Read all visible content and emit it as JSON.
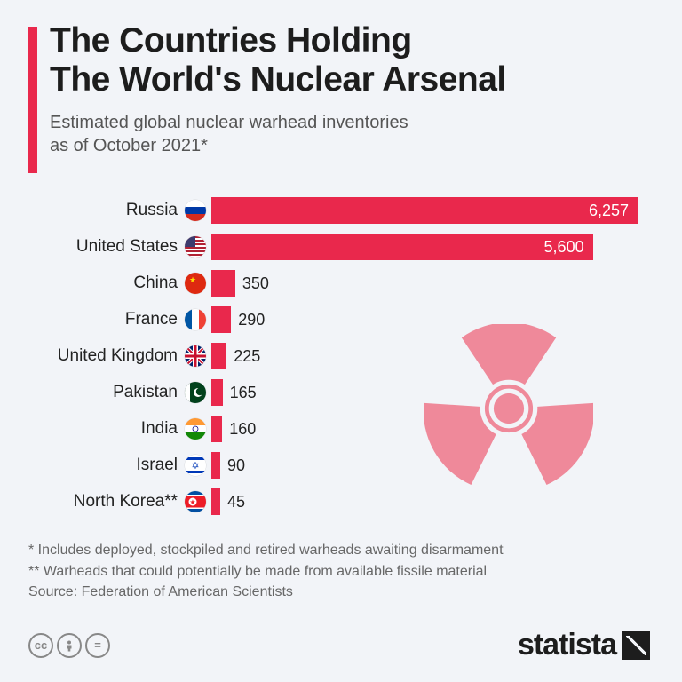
{
  "accent_color": "#e9284c",
  "bg_color": "#f2f4f8",
  "title_line1": "The Countries Holding",
  "title_line2": "The World's Nuclear Arsenal",
  "subtitle_line1": "Estimated global nuclear warhead inventories",
  "subtitle_line2": "as of October 2021*",
  "chart": {
    "type": "bar",
    "max_value": 6257,
    "bar_color": "#e9284c",
    "label_fontsize": 19,
    "value_fontsize": 18,
    "rows": [
      {
        "country": "Russia",
        "value": 6257,
        "value_fmt": "6,257",
        "big": true,
        "flag_key": "ru"
      },
      {
        "country": "United States",
        "value": 5600,
        "value_fmt": "5,600",
        "big": true,
        "flag_key": "us"
      },
      {
        "country": "China",
        "value": 350,
        "value_fmt": "350",
        "big": false,
        "flag_key": "cn"
      },
      {
        "country": "France",
        "value": 290,
        "value_fmt": "290",
        "big": false,
        "flag_key": "fr"
      },
      {
        "country": "United Kingdom",
        "value": 225,
        "value_fmt": "225",
        "big": false,
        "flag_key": "uk"
      },
      {
        "country": "Pakistan",
        "value": 165,
        "value_fmt": "165",
        "big": false,
        "flag_key": "pk"
      },
      {
        "country": "India",
        "value": 160,
        "value_fmt": "160",
        "big": false,
        "flag_key": "in"
      },
      {
        "country": "Israel",
        "value": 90,
        "value_fmt": "90",
        "big": false,
        "flag_key": "il"
      },
      {
        "country": "North Korea**",
        "value": 45,
        "value_fmt": "45",
        "big": false,
        "flag_key": "kp"
      }
    ]
  },
  "footnote1": "*   Includes deployed, stockpiled and retired warheads awaiting disarmament",
  "footnote2": "** Warheads that could potentially be made from available fissile material",
  "source": "Source: Federation of American Scientists",
  "brand": "statista",
  "cc_badges": [
    "cc",
    "by",
    "nd"
  ],
  "radiation_icon_color": "#ef899a"
}
